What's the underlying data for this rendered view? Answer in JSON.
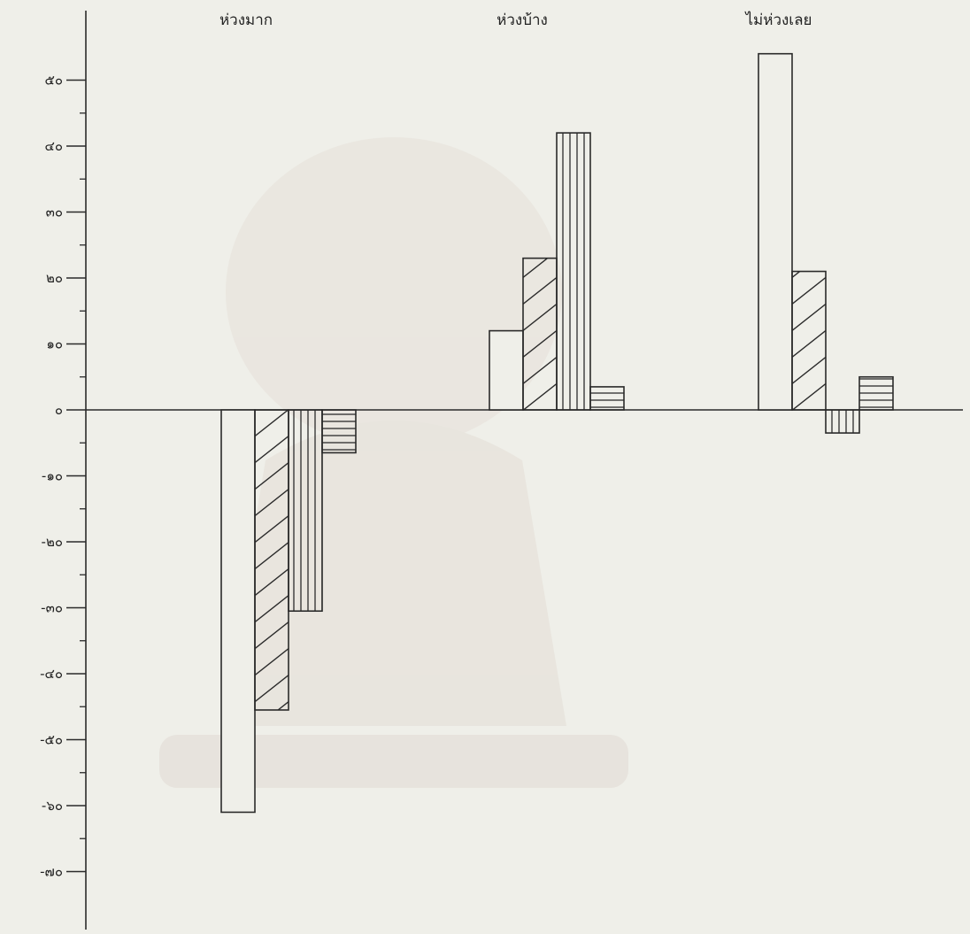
{
  "colors": {
    "background": "#efefe9",
    "ink": "#2a2a2a",
    "watermark": "#e3ddd6"
  },
  "chart_data": {
    "type": "bar",
    "title": "",
    "xlabel": "",
    "ylabel": "",
    "categories": [
      "ห่วงมาก",
      "ห่วงบ้าง",
      "ไม่ห่วงเลย"
    ],
    "ylim": [
      -75,
      55
    ],
    "ytick_values": [
      50,
      40,
      30,
      20,
      10,
      0,
      -10,
      -20,
      -30,
      -40,
      -50,
      -60,
      -70
    ],
    "ytick_labels": [
      "๕๐",
      "๔๐",
      "๓๐",
      "๒๐",
      "๑๐",
      "๐",
      "-๑๐",
      "-๒๐",
      "-๓๐",
      "-๔๐",
      "-๕๐",
      "-๖๐",
      "-๗๐"
    ],
    "grid": false,
    "legend": "none",
    "series": [
      {
        "pattern": "blank",
        "values": [
          -61,
          12,
          54
        ]
      },
      {
        "pattern": "diagonal",
        "values": [
          -45.5,
          23,
          21
        ]
      },
      {
        "pattern": "vertical",
        "values": [
          -30.5,
          42,
          -3.5
        ]
      },
      {
        "pattern": "horizontal",
        "values": [
          -6.5,
          3.5,
          5
        ]
      }
    ]
  }
}
